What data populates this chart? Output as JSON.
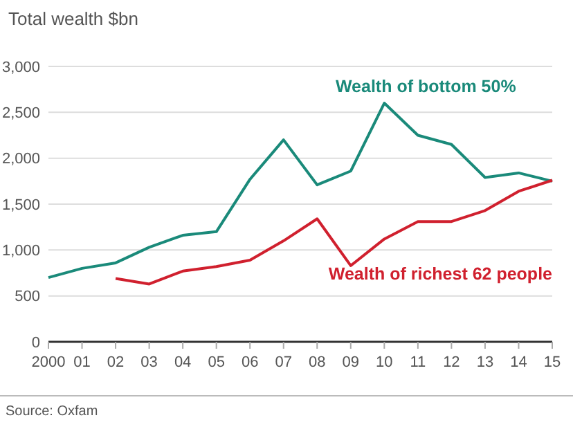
{
  "chart_data": {
    "type": "line",
    "title": "Total wealth $bn",
    "categories": [
      "2000",
      "01",
      "02",
      "03",
      "04",
      "05",
      "06",
      "07",
      "08",
      "09",
      "10",
      "11",
      "12",
      "13",
      "14",
      "15"
    ],
    "series": [
      {
        "name": "Wealth of bottom 50%",
        "color": "#1a8a7a",
        "values": [
          700,
          800,
          860,
          1030,
          1160,
          1200,
          1770,
          2200,
          1710,
          1860,
          2600,
          2250,
          2150,
          1790,
          1840,
          1750
        ]
      },
      {
        "name": "Wealth of richest 62 people",
        "color": "#d0202e",
        "values": [
          null,
          null,
          690,
          630,
          770,
          820,
          890,
          1100,
          1340,
          830,
          1120,
          1310,
          1310,
          1430,
          1640,
          1760
        ]
      }
    ],
    "ylim": [
      0,
      3000
    ],
    "yticks": [
      {
        "value": 0,
        "label": "0"
      },
      {
        "value": 500,
        "label": "500"
      },
      {
        "value": 1000,
        "label": "1,000"
      },
      {
        "value": 1500,
        "label": "1,500"
      },
      {
        "value": 2000,
        "label": "2,000"
      },
      {
        "value": 2500,
        "label": "2,500"
      },
      {
        "value": 3000,
        "label": "3,000"
      }
    ],
    "grid": "y",
    "annotations": [
      "Source: Oxfam"
    ]
  }
}
